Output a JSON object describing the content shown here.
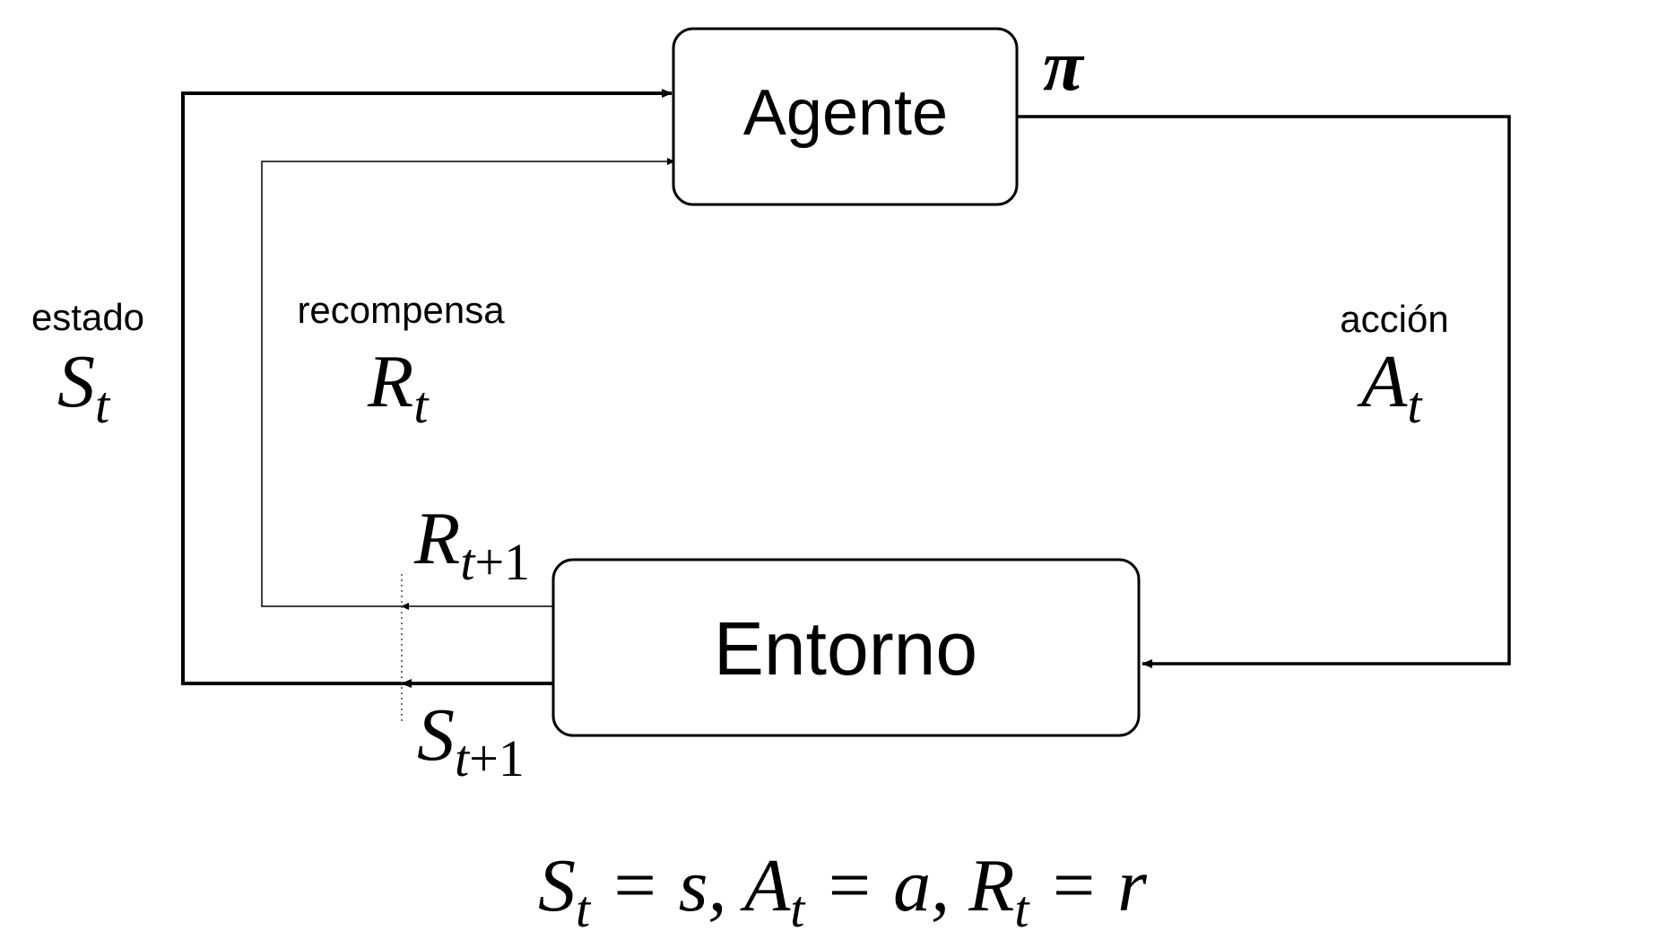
{
  "agent": {
    "label": "Agente",
    "policy_symbol": "π"
  },
  "environment": {
    "label": "Entorno"
  },
  "state": {
    "word": "estado",
    "symbol": "S",
    "subscript": "t"
  },
  "reward": {
    "word": "recompensa",
    "symbol": "R",
    "subscript": "t"
  },
  "action": {
    "word": "acción",
    "symbol": "A",
    "subscript": "t"
  },
  "next_reward": {
    "symbol": "R",
    "subscript_var": "t",
    "subscript_rest": "+1"
  },
  "next_state": {
    "symbol": "S",
    "subscript_var": "t",
    "subscript_rest": "+1"
  },
  "equation": {
    "s_sym": "S",
    "s_sub": "t",
    "s_val": " = s, ",
    "a_sym": "A",
    "a_sub": "t",
    "a_val": " = a, ",
    "r_sym": "R",
    "r_sub": "t",
    "r_val": " = r"
  }
}
